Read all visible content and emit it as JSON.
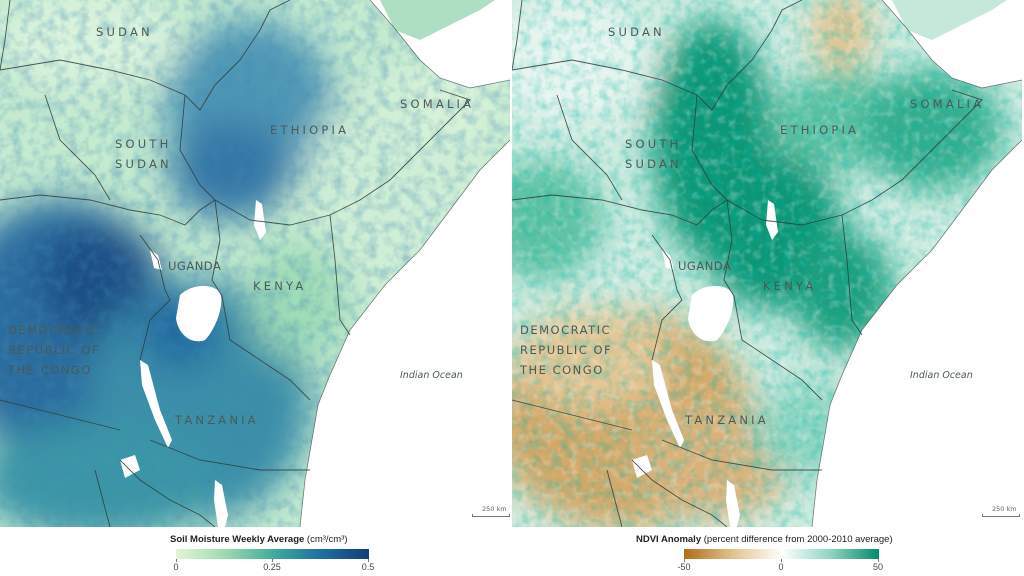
{
  "left_map": {
    "country_labels": {
      "sudan": "SUDAN",
      "south_sudan": "SOUTH\nSUDAN",
      "ethiopia": "ETHIOPIA",
      "somalia": "SOMALIA",
      "uganda": "UGANDA",
      "kenya": "KENYA",
      "drc": "DEMOCRATIC\nREPUBLIC OF\nTHE CONGO",
      "tanzania": "TANZANIA"
    },
    "ocean_label": "Indian Ocean",
    "scale_label": "250 km",
    "legend": {
      "title": "Soil Moisture Weekly Average",
      "units": "(cm³/cm³)",
      "ticks": [
        "0",
        "0.25",
        "0.5"
      ],
      "colors": [
        "#e6f5d6",
        "#9fdcb0",
        "#3fae9c",
        "#1f6fa6",
        "#0f3f7a"
      ]
    }
  },
  "right_map": {
    "country_labels": {
      "sudan": "SUDAN",
      "south_sudan": "SOUTH\nSUDAN",
      "ethiopia": "ETHIOPIA",
      "somalia": "SOMALIA",
      "uganda": "UGANDA",
      "kenya": "KENYA",
      "drc": "DEMOCRATIC\nREPUBLIC OF\nTHE CONGO",
      "tanzania": "TANZANIA"
    },
    "ocean_label": "Indian Ocean",
    "scale_label": "250 km",
    "legend": {
      "title": "NDVI Anomaly",
      "units": "(percent difference from 2000-2010 average)",
      "ticks": [
        "-50",
        "0",
        "50"
      ],
      "colors": [
        "#b06d17",
        "#e3c28c",
        "#ffffff",
        "#8fd6c2",
        "#008c6c"
      ]
    }
  },
  "colors": {
    "border": "#2f3b38",
    "water": "#ffffff",
    "sm_base": "#b9e4c0",
    "ndvi_base": "#d7efe5"
  }
}
